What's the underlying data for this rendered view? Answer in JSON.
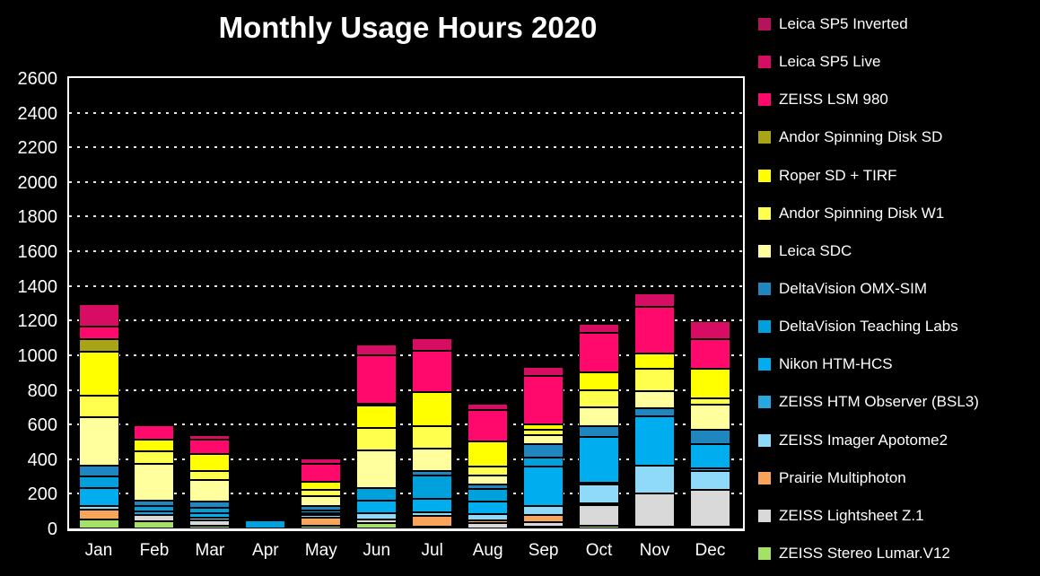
{
  "chart_data": {
    "type": "bar",
    "stacked": true,
    "title": "Monthly Usage Hours 2020",
    "xlabel": "",
    "ylabel": "",
    "ylim": [
      0,
      2600
    ],
    "y_ticks": [
      0,
      200,
      400,
      600,
      800,
      1000,
      1200,
      1400,
      1600,
      1800,
      2000,
      2200,
      2400,
      2600
    ],
    "grid": "horizontal dotted white on black",
    "legend_position": "right",
    "background_color": "#000000",
    "text_color": "#ffffff",
    "categories": [
      "Jan",
      "Feb",
      "Mar",
      "Apr",
      "May",
      "Jun",
      "Jul",
      "Aug",
      "Sep",
      "Oct",
      "Nov",
      "Dec"
    ],
    "stacking_note": "series listed top-of-stack first (legend order); bars stack bottom-to-top in reverse of this list",
    "series": [
      {
        "name": "Leica SP5 Inverted",
        "color": "#B5135B",
        "values": [
          0,
          0,
          0,
          0,
          0,
          0,
          0,
          0,
          0,
          0,
          0,
          0
        ]
      },
      {
        "name": "Leica SP5 Live",
        "color": "#D60D62",
        "values": [
          128,
          12,
          25,
          0,
          32,
          60,
          73,
          38,
          50,
          52,
          78,
          104
        ]
      },
      {
        "name": "ZEISS LSM 980",
        "color": "#FF0A6C",
        "values": [
          72,
          82,
          85,
          0,
          102,
          280,
          239,
          180,
          282,
          230,
          270,
          170
        ]
      },
      {
        "name": "Andor Spinning Disk SD",
        "color": "#A8A416",
        "values": [
          70,
          0,
          0,
          0,
          0,
          10,
          0,
          0,
          0,
          0,
          0,
          0
        ]
      },
      {
        "name": "Roper SD + TIRF",
        "color": "#FFFF00",
        "values": [
          256,
          67,
          99,
          11,
          48,
          130,
          195,
          145,
          32,
          104,
          88,
          172
        ]
      },
      {
        "name": "Andor Spinning Disk W1",
        "color": "#FFFF4D",
        "values": [
          122,
          75,
          52,
          0,
          34,
          128,
          132,
          50,
          30,
          100,
          130,
          38
        ]
      },
      {
        "name": "Leica SDC",
        "color": "#FFFF9E",
        "values": [
          280,
          213,
          125,
          0,
          58,
          220,
          130,
          52,
          50,
          108,
          96,
          145
        ]
      },
      {
        "name": "DeltaVision OMX-SIM",
        "color": "#1F86C0",
        "values": [
          60,
          33,
          34,
          0,
          24,
          0,
          26,
          24,
          78,
          61,
          45,
          84
        ]
      },
      {
        "name": "DeltaVision Teaching Labs",
        "color": "#00A0DC",
        "values": [
          68,
          33,
          30,
          46,
          18,
          74,
          135,
          70,
          50,
          0,
          0,
          0
        ]
      },
      {
        "name": "Nikon HTM-HCS",
        "color": "#00AEEF",
        "values": [
          102,
          22,
          26,
          0,
          10,
          72,
          79,
          72,
          230,
          265,
          285,
          140
        ]
      },
      {
        "name": "ZEISS HTM Observer (BSL3)",
        "color": "#29A8E0",
        "values": [
          0,
          0,
          0,
          0,
          0,
          0,
          0,
          0,
          0,
          8,
          0,
          16
        ]
      },
      {
        "name": "ZEISS Imager Apotome2",
        "color": "#8FD9F9",
        "values": [
          22,
          0,
          14,
          0,
          16,
          34,
          22,
          38,
          50,
          108,
          160,
          110
        ]
      },
      {
        "name": "Prairie Multiphoton",
        "color": "#F9A45B",
        "values": [
          58,
          0,
          0,
          0,
          48,
          0,
          61,
          14,
          44,
          10,
          0,
          0
        ]
      },
      {
        "name": "ZEISS Lightsheet Z.1",
        "color": "#D9D9D9",
        "values": [
          0,
          35,
          30,
          0,
          0,
          22,
          12,
          30,
          28,
          120,
          190,
          210
        ]
      },
      {
        "name": "ZEISS Stereo Lumar.V12",
        "color": "#A5E067",
        "values": [
          50,
          40,
          18,
          0,
          14,
          30,
          0,
          0,
          8,
          16,
          8,
          5
        ]
      }
    ]
  }
}
